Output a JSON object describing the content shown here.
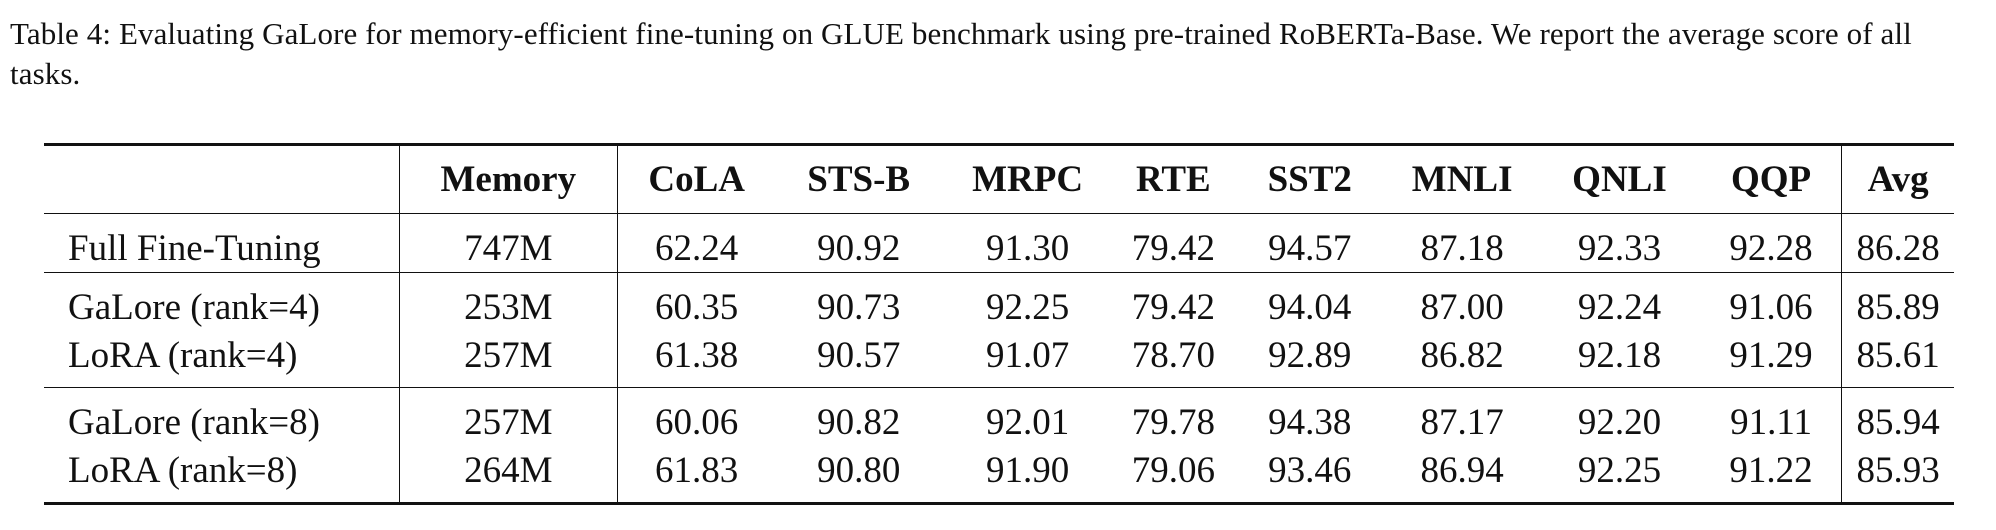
{
  "caption": {
    "label": "Table 4:",
    "text": "Evaluating GaLore for memory-efficient fine-tuning on GLUE benchmark using pre-trained RoBERTa-Base. We report the average score of all tasks."
  },
  "table": {
    "columns": [
      "",
      "Memory",
      "CoLA",
      "STS-B",
      "MRPC",
      "RTE",
      "SST2",
      "MNLI",
      "QNLI",
      "QQP",
      "Avg"
    ],
    "rows": [
      {
        "method": "Full Fine-Tuning",
        "method_bold": false,
        "memory": "747M",
        "cola": "62.24",
        "stsb": "90.92",
        "mrpc": "91.30",
        "rte": "79.42",
        "sst2": "94.57",
        "mnli": "87.18",
        "qnli": "92.33",
        "qqp": "92.28",
        "avg": "86.28"
      },
      {
        "method": "GaLore (rank=4)",
        "method_bold": true,
        "memory": "253M",
        "cola": "60.35",
        "stsb": "90.73",
        "mrpc": "92.25",
        "rte": "79.42",
        "sst2": "94.04",
        "mnli": "87.00",
        "qnli": "92.24",
        "qqp": "91.06",
        "avg": "85.89"
      },
      {
        "method": "LoRA (rank=4)",
        "method_bold": false,
        "memory": "257M",
        "cola": "61.38",
        "stsb": "90.57",
        "mrpc": "91.07",
        "rte": "78.70",
        "sst2": "92.89",
        "mnli": "86.82",
        "qnli": "92.18",
        "qqp": "91.29",
        "avg": "85.61"
      },
      {
        "method": "GaLore (rank=8)",
        "method_bold": true,
        "memory": "257M",
        "cola": "60.06",
        "stsb": "90.82",
        "mrpc": "92.01",
        "rte": "79.78",
        "sst2": "94.38",
        "mnli": "87.17",
        "qnli": "92.20",
        "qqp": "91.11",
        "avg": "85.94"
      },
      {
        "method": "LoRA (rank=8)",
        "method_bold": false,
        "memory": "264M",
        "cola": "61.83",
        "stsb": "90.80",
        "mrpc": "91.90",
        "rte": "79.06",
        "sst2": "93.46",
        "mnli": "86.94",
        "qnli": "92.25",
        "qqp": "91.22",
        "avg": "85.93"
      }
    ],
    "bold_cells": {
      "1": [
        "method",
        "stsb",
        "mrpc",
        "rte",
        "sst2",
        "mnli",
        "qnli",
        "avg"
      ],
      "2": [
        "cola",
        "qqp"
      ],
      "3": [
        "method",
        "stsb",
        "mrpc",
        "rte",
        "sst2",
        "mnli",
        "avg"
      ],
      "4": [
        "cola",
        "qnli",
        "qqp"
      ]
    }
  }
}
